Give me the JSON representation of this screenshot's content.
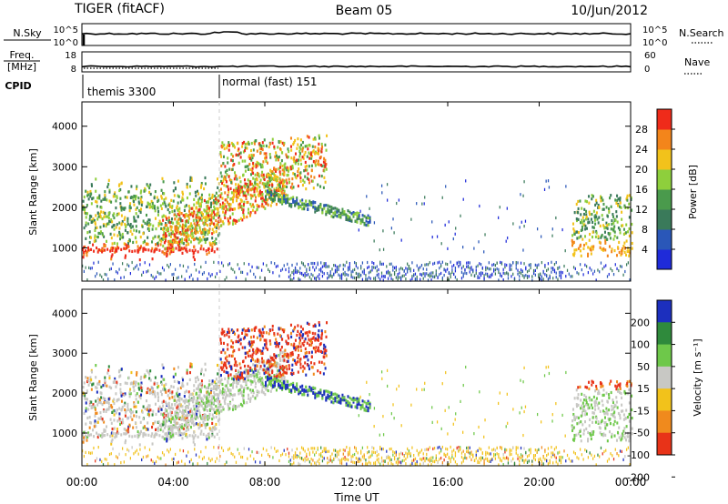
{
  "header": {
    "station": "TIGER (fitACF)",
    "beam": "Beam 05",
    "date": "10/Jun/2012"
  },
  "chart_data": [
    {
      "type": "line",
      "name": "N.Sky / N.Search panel",
      "left_label": "N.Sky",
      "right_label": "N.Search",
      "left_ticks": [
        "10^5",
        "10^0"
      ],
      "right_ticks": [
        "10^5",
        "10^0"
      ],
      "note": "near-constant trace at top of panel"
    },
    {
      "type": "line",
      "name": "Freq / Nave panel",
      "left_label_lines": [
        "Freq.",
        "[MHz]"
      ],
      "right_label": "Nave",
      "left_ticks": [
        18,
        8
      ],
      "right_ticks": [
        60,
        0
      ],
      "note": "near-constant trace at bottom of panel"
    },
    {
      "type": "table",
      "name": "CPID",
      "label": "CPID",
      "segments": [
        {
          "start_hour": 0.0,
          "label": "themis 3300"
        },
        {
          "start_hour": 6.0,
          "label": "normal (fast) 151"
        }
      ]
    },
    {
      "type": "heatmap",
      "name": "power",
      "ylabel": "Slant Range [km]",
      "yticks": [
        1000,
        2000,
        3000,
        4000
      ],
      "ylim": [
        180,
        4600
      ],
      "xlim_hours": [
        0,
        24
      ],
      "colorbar": {
        "label": "Power [dB]",
        "ticks": [
          4,
          8,
          12,
          16,
          20,
          24,
          28
        ],
        "range": [
          0,
          32
        ]
      }
    },
    {
      "type": "heatmap",
      "name": "velocity",
      "ylabel": "Slant Range [km]",
      "yticks": [
        1000,
        2000,
        3000,
        4000
      ],
      "ylim": [
        180,
        4600
      ],
      "xlim_hours": [
        0,
        24
      ],
      "xlabel": "Time UT",
      "xticks": [
        "00:00",
        "04:00",
        "08:00",
        "12:00",
        "16:00",
        "20:00",
        "00:00"
      ],
      "colorbar": {
        "label": "Velocity [m s⁻¹]",
        "ticks": [
          200,
          100,
          50,
          15,
          -15,
          -50,
          -100,
          -200
        ]
      }
    }
  ],
  "colors": {
    "power_scale": [
      "#1f2bd9",
      "#2a57b8",
      "#3a7a5a",
      "#4a9a4c",
      "#8ecf3c",
      "#f2c21b",
      "#f3851b",
      "#ef2b1a"
    ],
    "velocity_scale": [
      "#1c2fbe",
      "#2f8a3c",
      "#6ec84a",
      "#c8c8c4",
      "#f2c21b",
      "#f08a1d",
      "#e83318"
    ]
  }
}
